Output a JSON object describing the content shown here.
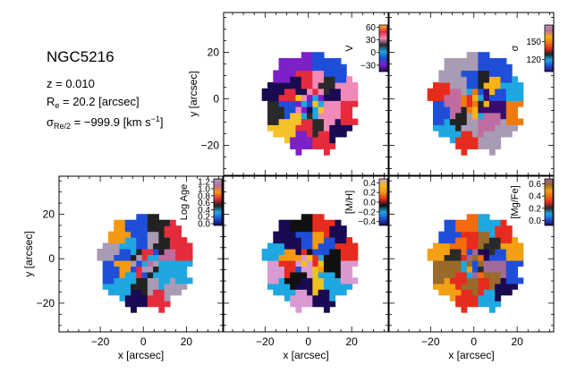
{
  "galaxy": {
    "name": "NGC5216",
    "redshift_label": "z = 0.010",
    "re_symbol": "R",
    "re_sub": "e",
    "re_value": " = 20.2 [arcsec]",
    "sigma_symbol": "σ",
    "sigma_sub": "Re/2",
    "sigma_value": " = −999.9 [km s",
    "sigma_sup": "−1",
    "sigma_close": "]"
  },
  "chart_data": [
    {
      "type": "heatmap",
      "panel": "velocity",
      "colorbar_label": "V",
      "colorbar_ticks": [
        "60",
        "30",
        "0",
        "−30"
      ],
      "colorbar_tick_values": [
        60,
        30,
        0,
        -30
      ],
      "colorbar_range": [
        -45,
        65
      ],
      "colormap": [
        "#1a0a52",
        "#7c20c8",
        "#1f4fd8",
        "#1ea7e0",
        "#2a2a2a",
        "#f08ab8",
        "#e62c3c",
        "#f6c22a"
      ],
      "ylabel": "y [arcsec]",
      "xlabel": "",
      "y_ticks": [
        "20",
        "0",
        "−20"
      ],
      "y_tick_values": [
        20,
        0,
        -20
      ],
      "x_ticks": [],
      "xlim": [
        -38,
        38
      ],
      "ylim": [
        -32,
        38
      ]
    },
    {
      "type": "heatmap",
      "panel": "dispersion",
      "colorbar_label": "σ",
      "colorbar_ticks": [
        "150",
        "120"
      ],
      "colorbar_tick_values": [
        150,
        120
      ],
      "colorbar_range": [
        100,
        178
      ],
      "colormap": [
        "#3a0a6e",
        "#1f4fd8",
        "#1ea7e0",
        "#222222",
        "#e62c1e",
        "#f07a12",
        "#f3b415",
        "#c06ca0",
        "#a89bb3"
      ],
      "ylabel": "",
      "xlabel": "",
      "y_ticks": [],
      "x_ticks": [],
      "xlim": [
        -38,
        38
      ],
      "ylim": [
        -32,
        38
      ]
    },
    {
      "type": "heatmap",
      "panel": "log-age",
      "colorbar_label": "Log Age",
      "colorbar_ticks": [
        "1.2",
        "1.0",
        "0.8",
        "0.6",
        "0.4",
        "0.2",
        "0.0"
      ],
      "colorbar_tick_values": [
        1.2,
        1.0,
        0.8,
        0.6,
        0.4,
        0.2,
        0.0
      ],
      "colorbar_range": [
        -0.05,
        1.28
      ],
      "colormap": [
        "#1a0a52",
        "#1f4fd8",
        "#1ea7e0",
        "#222222",
        "#e62c3c",
        "#f39a12",
        "#c06ca0",
        "#a89bb3"
      ],
      "ylabel": "y [arcsec]",
      "xlabel": "x [arcsec]",
      "y_ticks": [
        "20",
        "0",
        "−20"
      ],
      "y_tick_values": [
        20,
        0,
        -20
      ],
      "x_ticks": [
        "−20",
        "0",
        "20"
      ],
      "x_tick_values": [
        -20,
        0,
        20
      ],
      "xlim": [
        -38,
        38
      ],
      "ylim": [
        -32,
        38
      ]
    },
    {
      "type": "heatmap",
      "panel": "metallicity",
      "colorbar_label": "[M/H]",
      "colorbar_ticks": [
        "0.4",
        "0.2",
        "0.0",
        "−0.2",
        "−0.4"
      ],
      "colorbar_tick_values": [
        0.4,
        0.2,
        0.0,
        -0.2,
        -0.4
      ],
      "colorbar_range": [
        -0.48,
        0.48
      ],
      "colormap": [
        "#1a0a52",
        "#1f4fd8",
        "#1ea7e0",
        "#111111",
        "#e62c1e",
        "#f59a10",
        "#f0c020",
        "#d89ad0"
      ],
      "ylabel": "",
      "xlabel": "x [arcsec]",
      "y_ticks": [],
      "x_ticks": [
        "−20",
        "0",
        "20"
      ],
      "x_tick_values": [
        -20,
        0,
        20
      ],
      "xlim": [
        -38,
        38
      ],
      "ylim": [
        -32,
        38
      ]
    },
    {
      "type": "heatmap",
      "panel": "alpha-fe",
      "colorbar_label": "[Mg/Fe]",
      "colorbar_ticks": [
        "0.6",
        "0.4",
        "0.2",
        "0.0"
      ],
      "colorbar_tick_values": [
        0.6,
        0.4,
        0.2,
        0.0
      ],
      "colorbar_range": [
        -0.08,
        0.68
      ],
      "colormap": [
        "#1a0a52",
        "#1f4fd8",
        "#1ea7e0",
        "#2a2a2a",
        "#e62c1e",
        "#f56a10",
        "#f3a015",
        "#9a6a2a",
        "#a06a9a"
      ],
      "ylabel": "",
      "xlabel": "x [arcsec]",
      "y_ticks": [],
      "x_ticks": [
        "−20",
        "0",
        "20"
      ],
      "x_tick_values": [
        -20,
        0,
        20
      ],
      "xlim": [
        -38,
        38
      ],
      "ylim": [
        -32,
        38
      ]
    }
  ]
}
